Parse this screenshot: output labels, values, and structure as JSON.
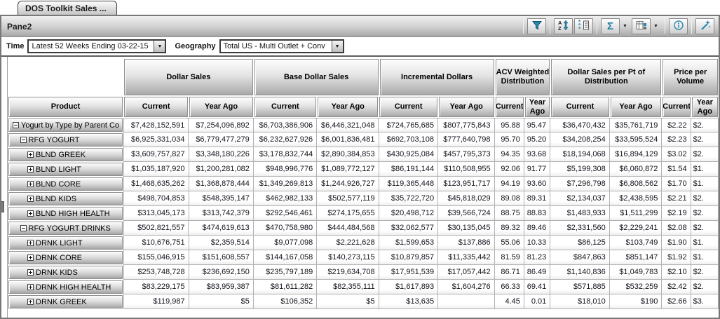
{
  "tab": {
    "label": "DOS Toolkit Sales ..."
  },
  "pane": {
    "title": "Pane2"
  },
  "colors": {
    "accent_teal": "#2d87ad",
    "button_face": "#cfcfcf",
    "grid_border": "#b2b2b2"
  },
  "toolbar": {
    "icons": [
      "filter-icon",
      "sort-az-icon",
      "select-items-icon",
      "sigma-icon",
      "sigma-dropdown-icon",
      "table-layout-icon",
      "table-layout-dropdown-icon",
      "info-icon",
      "tools-wand-icon"
    ]
  },
  "filters": {
    "time_label": "Time",
    "time_value": "Latest 52 Weeks Ending 03-22-15",
    "geo_label": "Geography",
    "geo_value": "Total US - Multi Outlet + Conv"
  },
  "table": {
    "product_header": "Product",
    "groups": [
      {
        "label": "Dollar Sales"
      },
      {
        "label": "Base Dollar Sales"
      },
      {
        "label": "Incremental Dollars"
      },
      {
        "label": "ACV Weighted Distribution"
      },
      {
        "label": "Dollar Sales per Pt of Distribution"
      },
      {
        "label": "Price per Volume"
      }
    ],
    "sub_headers": [
      "Current",
      "Year Ago",
      "Current",
      "Year Ago",
      "Current",
      "Year Ago",
      "Current",
      "Year Ago",
      "Current",
      "Year Ago",
      "Current",
      "Year Ago"
    ],
    "rows": [
      {
        "label": "Yogurt by Type by Parent Co",
        "level": 0,
        "expand": "minus",
        "values": [
          "$7,428,152,591",
          "$7,254,096,892",
          "$6,703,386,906",
          "$6,446,321,048",
          "$724,765,685",
          "$807,775,843",
          "95.88",
          "95.47",
          "$36,470,432",
          "$35,761,719",
          "$2.22",
          "$2."
        ]
      },
      {
        "label": "RFG YOGURT",
        "level": 1,
        "expand": "minus",
        "values": [
          "$6,925,331,034",
          "$6,779,477,279",
          "$6,232,627,926",
          "$6,001,836,481",
          "$692,703,108",
          "$777,640,798",
          "95.70",
          "95.20",
          "$34,208,254",
          "$33,595,524",
          "$2.23",
          "$2."
        ]
      },
      {
        "label": "BLND GREEK",
        "level": 2,
        "expand": "plus",
        "values": [
          "$3,609,757,827",
          "$3,348,180,226",
          "$3,178,832,744",
          "$2,890,384,853",
          "$430,925,084",
          "$457,795,373",
          "94.35",
          "93.68",
          "$18,194,068",
          "$16,894,129",
          "$3.02",
          "$2."
        ]
      },
      {
        "label": "BLND LIGHT",
        "level": 2,
        "expand": "plus",
        "values": [
          "$1,035,187,920",
          "$1,200,281,082",
          "$948,996,776",
          "$1,089,772,127",
          "$86,191,144",
          "$110,508,955",
          "92.06",
          "91.77",
          "$5,199,308",
          "$6,060,872",
          "$1.54",
          "$1."
        ]
      },
      {
        "label": "BLND CORE",
        "level": 2,
        "expand": "plus",
        "values": [
          "$1,468,635,262",
          "$1,368,878,444",
          "$1,349,269,813",
          "$1,244,926,727",
          "$119,365,448",
          "$123,951,717",
          "94.19",
          "93.60",
          "$7,296,798",
          "$6,808,562",
          "$1.70",
          "$1."
        ]
      },
      {
        "label": "BLND KIDS",
        "level": 2,
        "expand": "plus",
        "values": [
          "$498,704,853",
          "$548,395,147",
          "$462,982,133",
          "$502,577,119",
          "$35,722,720",
          "$45,818,029",
          "89.08",
          "89.31",
          "$2,134,037",
          "$2,438,595",
          "$2.21",
          "$2."
        ]
      },
      {
        "label": "BLND HIGH HEALTH",
        "level": 2,
        "expand": "plus",
        "values": [
          "$313,045,173",
          "$313,742,379",
          "$292,546,461",
          "$274,175,655",
          "$20,498,712",
          "$39,566,724",
          "88.75",
          "88.83",
          "$1,483,933",
          "$1,511,299",
          "$2.19",
          "$2."
        ]
      },
      {
        "label": "RFG YOGURT DRINKS",
        "level": 1,
        "expand": "minus",
        "values": [
          "$502,821,557",
          "$474,619,613",
          "$470,758,980",
          "$444,484,568",
          "$32,062,577",
          "$30,135,045",
          "89.32",
          "89.46",
          "$2,331,560",
          "$2,229,241",
          "$2.08",
          "$2."
        ]
      },
      {
        "label": "DRNK LIGHT",
        "level": 2,
        "expand": "plus",
        "values": [
          "$10,676,751",
          "$2,359,514",
          "$9,077,098",
          "$2,221,628",
          "$1,599,653",
          "$137,886",
          "55.06",
          "10.33",
          "$86,125",
          "$103,749",
          "$1.90",
          "$1."
        ]
      },
      {
        "label": "DRNK CORE",
        "level": 2,
        "expand": "plus",
        "values": [
          "$155,046,915",
          "$151,608,557",
          "$144,167,058",
          "$140,273,115",
          "$10,879,857",
          "$11,335,442",
          "81.59",
          "81.23",
          "$847,863",
          "$851,147",
          "$1.92",
          "$1."
        ]
      },
      {
        "label": "DRNK KIDS",
        "level": 2,
        "expand": "plus",
        "values": [
          "$253,748,728",
          "$236,692,150",
          "$235,797,189",
          "$219,634,708",
          "$17,951,539",
          "$17,057,442",
          "86.71",
          "86.49",
          "$1,140,836",
          "$1,049,783",
          "$2.10",
          "$2."
        ]
      },
      {
        "label": "DRNK HIGH HEALTH",
        "level": 2,
        "expand": "plus",
        "values": [
          "$83,229,175",
          "$83,959,387",
          "$81,611,282",
          "$82,355,111",
          "$1,617,893",
          "$1,604,276",
          "66.33",
          "69.41",
          "$571,885",
          "$532,259",
          "$2.42",
          "$2."
        ]
      },
      {
        "label": "DRNK GREEK",
        "level": 2,
        "expand": "plus",
        "values": [
          "$119,987",
          "$5",
          "$106,352",
          "$5",
          "$13,635",
          "",
          "4.45",
          "0.01",
          "$18,010",
          "$190",
          "$2.66",
          "$3."
        ]
      }
    ]
  }
}
